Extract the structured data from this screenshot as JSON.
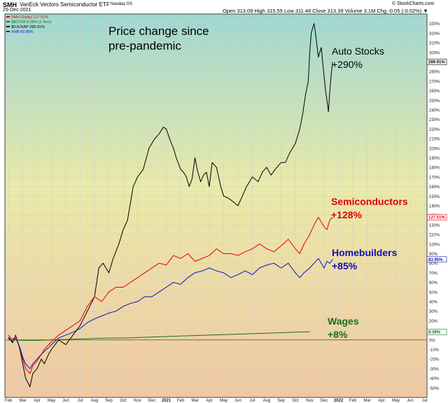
{
  "header": {
    "symbol": "SMH",
    "title": "VanEck Vectors Semiconductor ETF",
    "exchange": "Nasdaq GS",
    "date": "29-Dec-2021",
    "ohlc": "Open 313.09  High 315.55  Low 311.48  Close 313.39  Volume 3.1M  Chg -0.05 (-0.02%) ▼",
    "credit": "© StockCharts.com"
  },
  "legend": [
    {
      "text": "SMH (Daily) 127.51%",
      "color": "#e00000"
    },
    {
      "text": "$$CPIW 8.38% (1 Nov)",
      "color": "#1a6e1a"
    },
    {
      "text": "$DJUSAP 289.91%",
      "color": "#000000"
    },
    {
      "text": "XHB 83.95%",
      "color": "#1010b8"
    }
  ],
  "chart_data": {
    "type": "line",
    "title": "Price change since pre-pandemic",
    "ylabel": "",
    "ylim": [
      -60,
      340
    ],
    "y_ticks": [
      -50,
      -40,
      -30,
      -20,
      -10,
      0,
      10,
      20,
      30,
      40,
      50,
      60,
      70,
      80,
      90,
      100,
      110,
      120,
      130,
      140,
      150,
      160,
      170,
      180,
      190,
      200,
      210,
      220,
      230,
      240,
      250,
      260,
      270,
      280,
      290,
      300,
      310,
      320,
      330
    ],
    "y_tick_suffix": "%",
    "x_ticks": [
      "Feb",
      "Mar",
      "Apr",
      "May",
      "Jun",
      "Jul",
      "Aug",
      "Sep",
      "Oct",
      "Nov",
      "Dec",
      "2021",
      "Feb",
      "Mar",
      "Apr",
      "May",
      "Jun",
      "Jul",
      "Aug",
      "Sep",
      "Oct",
      "Nov",
      "Dec",
      "2022",
      "Feb",
      "Mar",
      "Apr",
      "May",
      "Jun",
      "Jul"
    ],
    "series": [
      {
        "name": "Auto Stocks",
        "color": "#000000",
        "end_label": "289.91%",
        "annotation": [
          "Auto Stocks",
          "+290%"
        ],
        "x": [
          0,
          0.3,
          0.5,
          0.8,
          1,
          1.2,
          1.5,
          1.7,
          2,
          2.3,
          2.5,
          2.8,
          3,
          3.5,
          4,
          4.5,
          5,
          5.5,
          6,
          6.3,
          6.6,
          7,
          7.3,
          7.7,
          8,
          8.3,
          8.7,
          9,
          9.4,
          9.8,
          10.2,
          10.5,
          10.8,
          11,
          11.3,
          11.5,
          11.7,
          12,
          12.2,
          12.4,
          12.6,
          12.8,
          13,
          13.2,
          13.4,
          13.6,
          13.8,
          14,
          14.2,
          14.5,
          14.8,
          15,
          15.3,
          15.6,
          16,
          16.3,
          16.6,
          17,
          17.4,
          17.7,
          18,
          18.3,
          18.6,
          19,
          19.3,
          19.6,
          20,
          20.3,
          20.5,
          20.7,
          20.9,
          21,
          21.1,
          21.2,
          21.3,
          21.4,
          21.6,
          21.8,
          22,
          22.1,
          22.2,
          22.3,
          22.4,
          22.5,
          22.6
        ],
        "y": [
          2,
          -3,
          5,
          -10,
          -25,
          -40,
          -49,
          -35,
          -30,
          -20,
          -25,
          -15,
          -10,
          0,
          -5,
          5,
          15,
          30,
          45,
          75,
          80,
          70,
          85,
          100,
          115,
          125,
          160,
          170,
          178,
          200,
          210,
          215,
          222,
          220,
          207,
          200,
          190,
          178,
          175,
          170,
          160,
          168,
          190,
          175,
          165,
          172,
          175,
          160,
          185,
          180,
          160,
          150,
          148,
          145,
          140,
          150,
          160,
          170,
          165,
          175,
          180,
          172,
          178,
          185,
          185,
          195,
          205,
          220,
          235,
          255,
          270,
          300,
          320,
          325,
          330,
          320,
          295,
          305,
          275,
          260,
          250,
          238,
          260,
          278,
          290
        ]
      },
      {
        "name": "Semiconductors",
        "color": "#e00000",
        "end_label": "127.51%",
        "annotation": [
          "Semiconductors",
          "+128%"
        ],
        "x": [
          0,
          0.3,
          0.5,
          0.8,
          1,
          1.2,
          1.5,
          1.7,
          2,
          2.3,
          2.5,
          2.8,
          3,
          3.5,
          4,
          4.5,
          5,
          5.5,
          6,
          6.5,
          7,
          7.5,
          8,
          8.5,
          9,
          9.5,
          10,
          10.5,
          11,
          11.5,
          12,
          12.5,
          13,
          13.5,
          14,
          14.5,
          15,
          15.5,
          16,
          16.5,
          17,
          17.5,
          18,
          18.5,
          19,
          19.5,
          20,
          20.3,
          20.6,
          21,
          21.3,
          21.6,
          22,
          22.2,
          22.4,
          22.6
        ],
        "y": [
          5,
          0,
          4,
          -8,
          -20,
          -30,
          -35,
          -27,
          -22,
          -15,
          -10,
          -5,
          -2,
          5,
          10,
          15,
          20,
          35,
          45,
          40,
          50,
          55,
          55,
          60,
          65,
          70,
          75,
          80,
          78,
          88,
          85,
          90,
          82,
          85,
          88,
          95,
          90,
          90,
          88,
          92,
          95,
          100,
          95,
          92,
          98,
          105,
          95,
          90,
          100,
          110,
          120,
          128,
          118,
          115,
          125,
          128
        ]
      },
      {
        "name": "Homebuilders",
        "color": "#1010b8",
        "end_label": "83.95%",
        "annotation": [
          "Homebuilders",
          "+85%"
        ],
        "x": [
          0,
          0.3,
          0.5,
          0.8,
          1,
          1.2,
          1.5,
          1.7,
          2,
          2.3,
          2.5,
          2.8,
          3,
          3.5,
          4,
          4.5,
          5,
          5.5,
          6,
          6.5,
          7,
          7.5,
          8,
          8.5,
          9,
          9.5,
          10,
          10.5,
          11,
          11.5,
          12,
          12.5,
          13,
          13.5,
          14,
          14.5,
          15,
          15.5,
          16,
          16.5,
          17,
          17.5,
          18,
          18.5,
          19,
          19.5,
          20,
          20.3,
          20.6,
          21,
          21.3,
          21.6,
          22,
          22.2,
          22.4,
          22.6
        ],
        "y": [
          3,
          -2,
          2,
          -8,
          -18,
          -25,
          -30,
          -25,
          -20,
          -15,
          -12,
          -8,
          -5,
          2,
          5,
          8,
          12,
          18,
          22,
          25,
          28,
          30,
          35,
          38,
          40,
          45,
          45,
          50,
          55,
          60,
          58,
          65,
          70,
          72,
          75,
          72,
          70,
          65,
          68,
          72,
          68,
          75,
          78,
          80,
          75,
          80,
          70,
          65,
          70,
          75,
          80,
          85,
          75,
          82,
          80,
          84
        ]
      },
      {
        "name": "Wages",
        "color": "#1a6e1a",
        "end_label": "8.38%",
        "annotation": [
          "Wages",
          "+8%"
        ],
        "x": [
          0,
          1,
          2,
          3,
          4,
          5,
          6,
          7,
          8,
          9,
          10,
          11,
          12,
          13,
          14,
          15,
          16,
          17,
          18,
          19,
          20,
          21
        ],
        "y": [
          0,
          -0.5,
          -0.5,
          0,
          0.5,
          1,
          1.5,
          2,
          2,
          2.5,
          3,
          3.5,
          4,
          4.5,
          5,
          5.5,
          6,
          6.5,
          7,
          7.5,
          8,
          8.38
        ]
      }
    ]
  }
}
